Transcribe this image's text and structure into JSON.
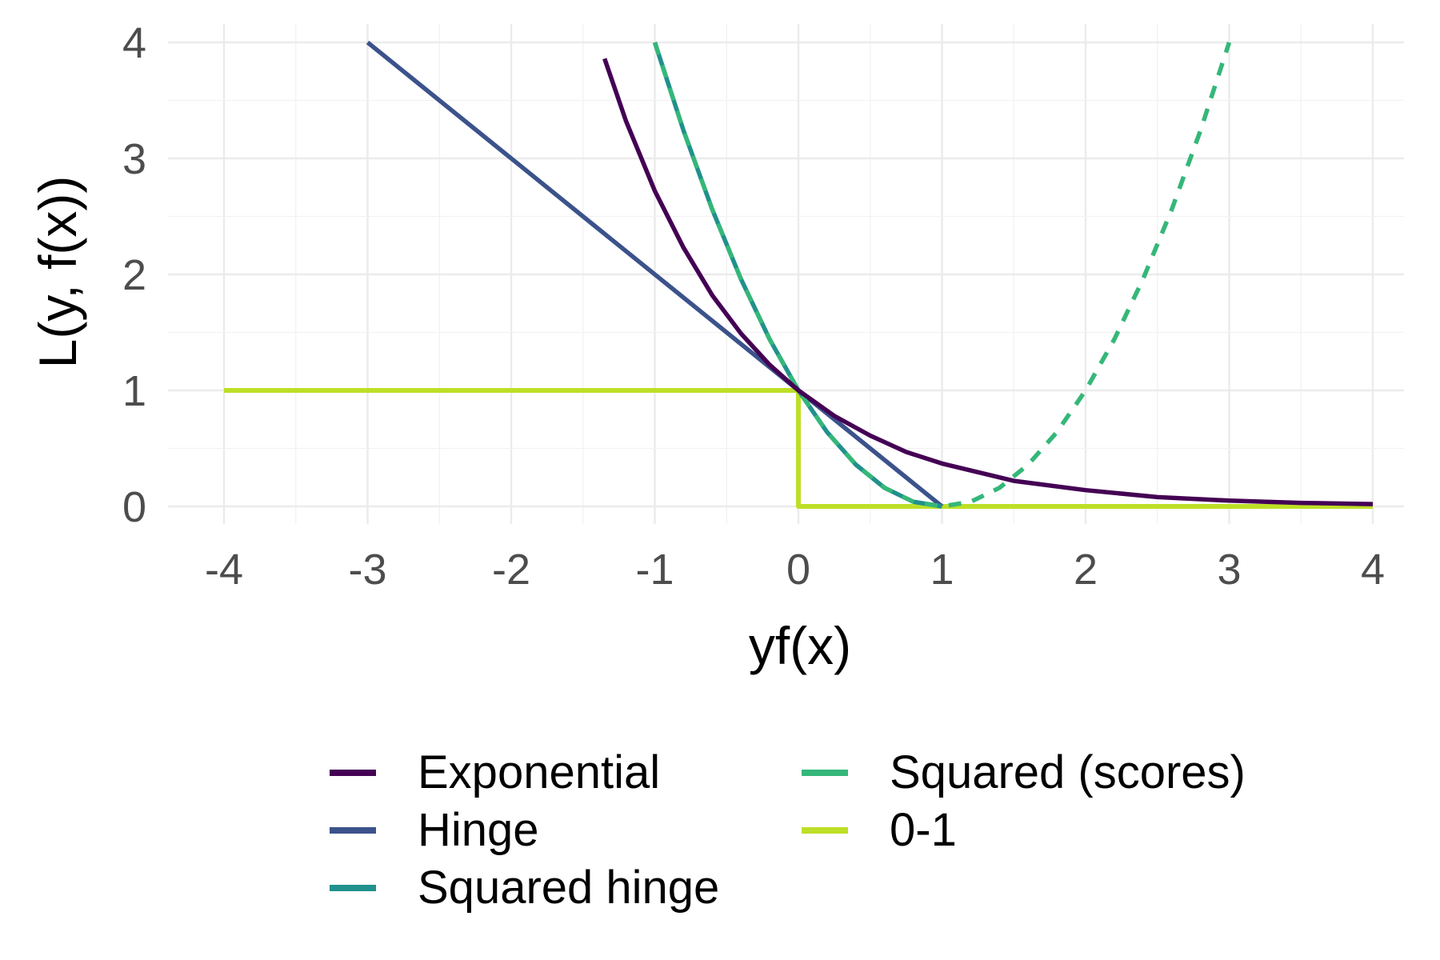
{
  "chart_data": {
    "type": "line",
    "xlabel": "yf(x)",
    "ylabel": "L(y, f(x))",
    "xlim": [
      -4,
      4
    ],
    "ylim": [
      0,
      4
    ],
    "x_ticks": [
      "-4",
      "-3",
      "-2",
      "-1",
      "0",
      "1",
      "2",
      "3",
      "4"
    ],
    "y_ticks": [
      "0",
      "1",
      "2",
      "3",
      "4"
    ],
    "grid": true,
    "legend_position": "bottom",
    "series": [
      {
        "name": "Exponential",
        "color": "#440154",
        "dash": "solid",
        "points": [
          [
            -1.35,
            3.86
          ],
          [
            -1.2,
            3.32
          ],
          [
            -1.0,
            2.72
          ],
          [
            -0.8,
            2.23
          ],
          [
            -0.6,
            1.82
          ],
          [
            -0.4,
            1.49
          ],
          [
            -0.2,
            1.22
          ],
          [
            0,
            1.0
          ],
          [
            0.25,
            0.78
          ],
          [
            0.5,
            0.61
          ],
          [
            0.75,
            0.47
          ],
          [
            1.0,
            0.37
          ],
          [
            1.5,
            0.22
          ],
          [
            2.0,
            0.14
          ],
          [
            2.5,
            0.08
          ],
          [
            3.0,
            0.05
          ],
          [
            3.5,
            0.03
          ],
          [
            4.0,
            0.02
          ]
        ]
      },
      {
        "name": "Hinge",
        "color": "#3b528b",
        "dash": "solid",
        "points": [
          [
            -3,
            4
          ],
          [
            1,
            0
          ]
        ]
      },
      {
        "name": "Squared hinge",
        "color": "#21908c",
        "dash": "solid",
        "points": [
          [
            -1.0,
            4.0
          ],
          [
            -0.8,
            3.24
          ],
          [
            -0.6,
            2.56
          ],
          [
            -0.4,
            1.96
          ],
          [
            -0.2,
            1.44
          ],
          [
            0,
            1.0
          ],
          [
            0.2,
            0.64
          ],
          [
            0.4,
            0.36
          ],
          [
            0.6,
            0.16
          ],
          [
            0.8,
            0.04
          ],
          [
            1.0,
            0.0
          ]
        ]
      },
      {
        "name": "Squared (scores)",
        "color": "#35b779",
        "dash": "dashed",
        "points": [
          [
            -1.0,
            4.0
          ],
          [
            -0.8,
            3.24
          ],
          [
            -0.6,
            2.56
          ],
          [
            -0.4,
            1.96
          ],
          [
            -0.2,
            1.44
          ],
          [
            0,
            1.0
          ],
          [
            0.2,
            0.64
          ],
          [
            0.4,
            0.36
          ],
          [
            0.6,
            0.16
          ],
          [
            0.8,
            0.04
          ],
          [
            1.0,
            0.0
          ],
          [
            1.2,
            0.04
          ],
          [
            1.4,
            0.16
          ],
          [
            1.6,
            0.36
          ],
          [
            1.8,
            0.64
          ],
          [
            2.0,
            1.0
          ],
          [
            2.2,
            1.44
          ],
          [
            2.4,
            1.96
          ],
          [
            2.6,
            2.56
          ],
          [
            2.8,
            3.24
          ],
          [
            3.0,
            4.0
          ]
        ]
      },
      {
        "name": "0-1",
        "color": "#bddf26",
        "dash": "solid",
        "points": [
          [
            -4,
            1
          ],
          [
            0,
            1
          ],
          [
            0,
            0
          ],
          [
            4,
            0
          ]
        ]
      }
    ],
    "legend_items": [
      {
        "label": "Exponential",
        "color": "#440154"
      },
      {
        "label": "Hinge",
        "color": "#3b528b"
      },
      {
        "label": "Squared hinge",
        "color": "#21908c"
      },
      {
        "label": "Squared (scores)",
        "color": "#35b779"
      },
      {
        "label": "0-1",
        "color": "#bddf26"
      }
    ]
  }
}
